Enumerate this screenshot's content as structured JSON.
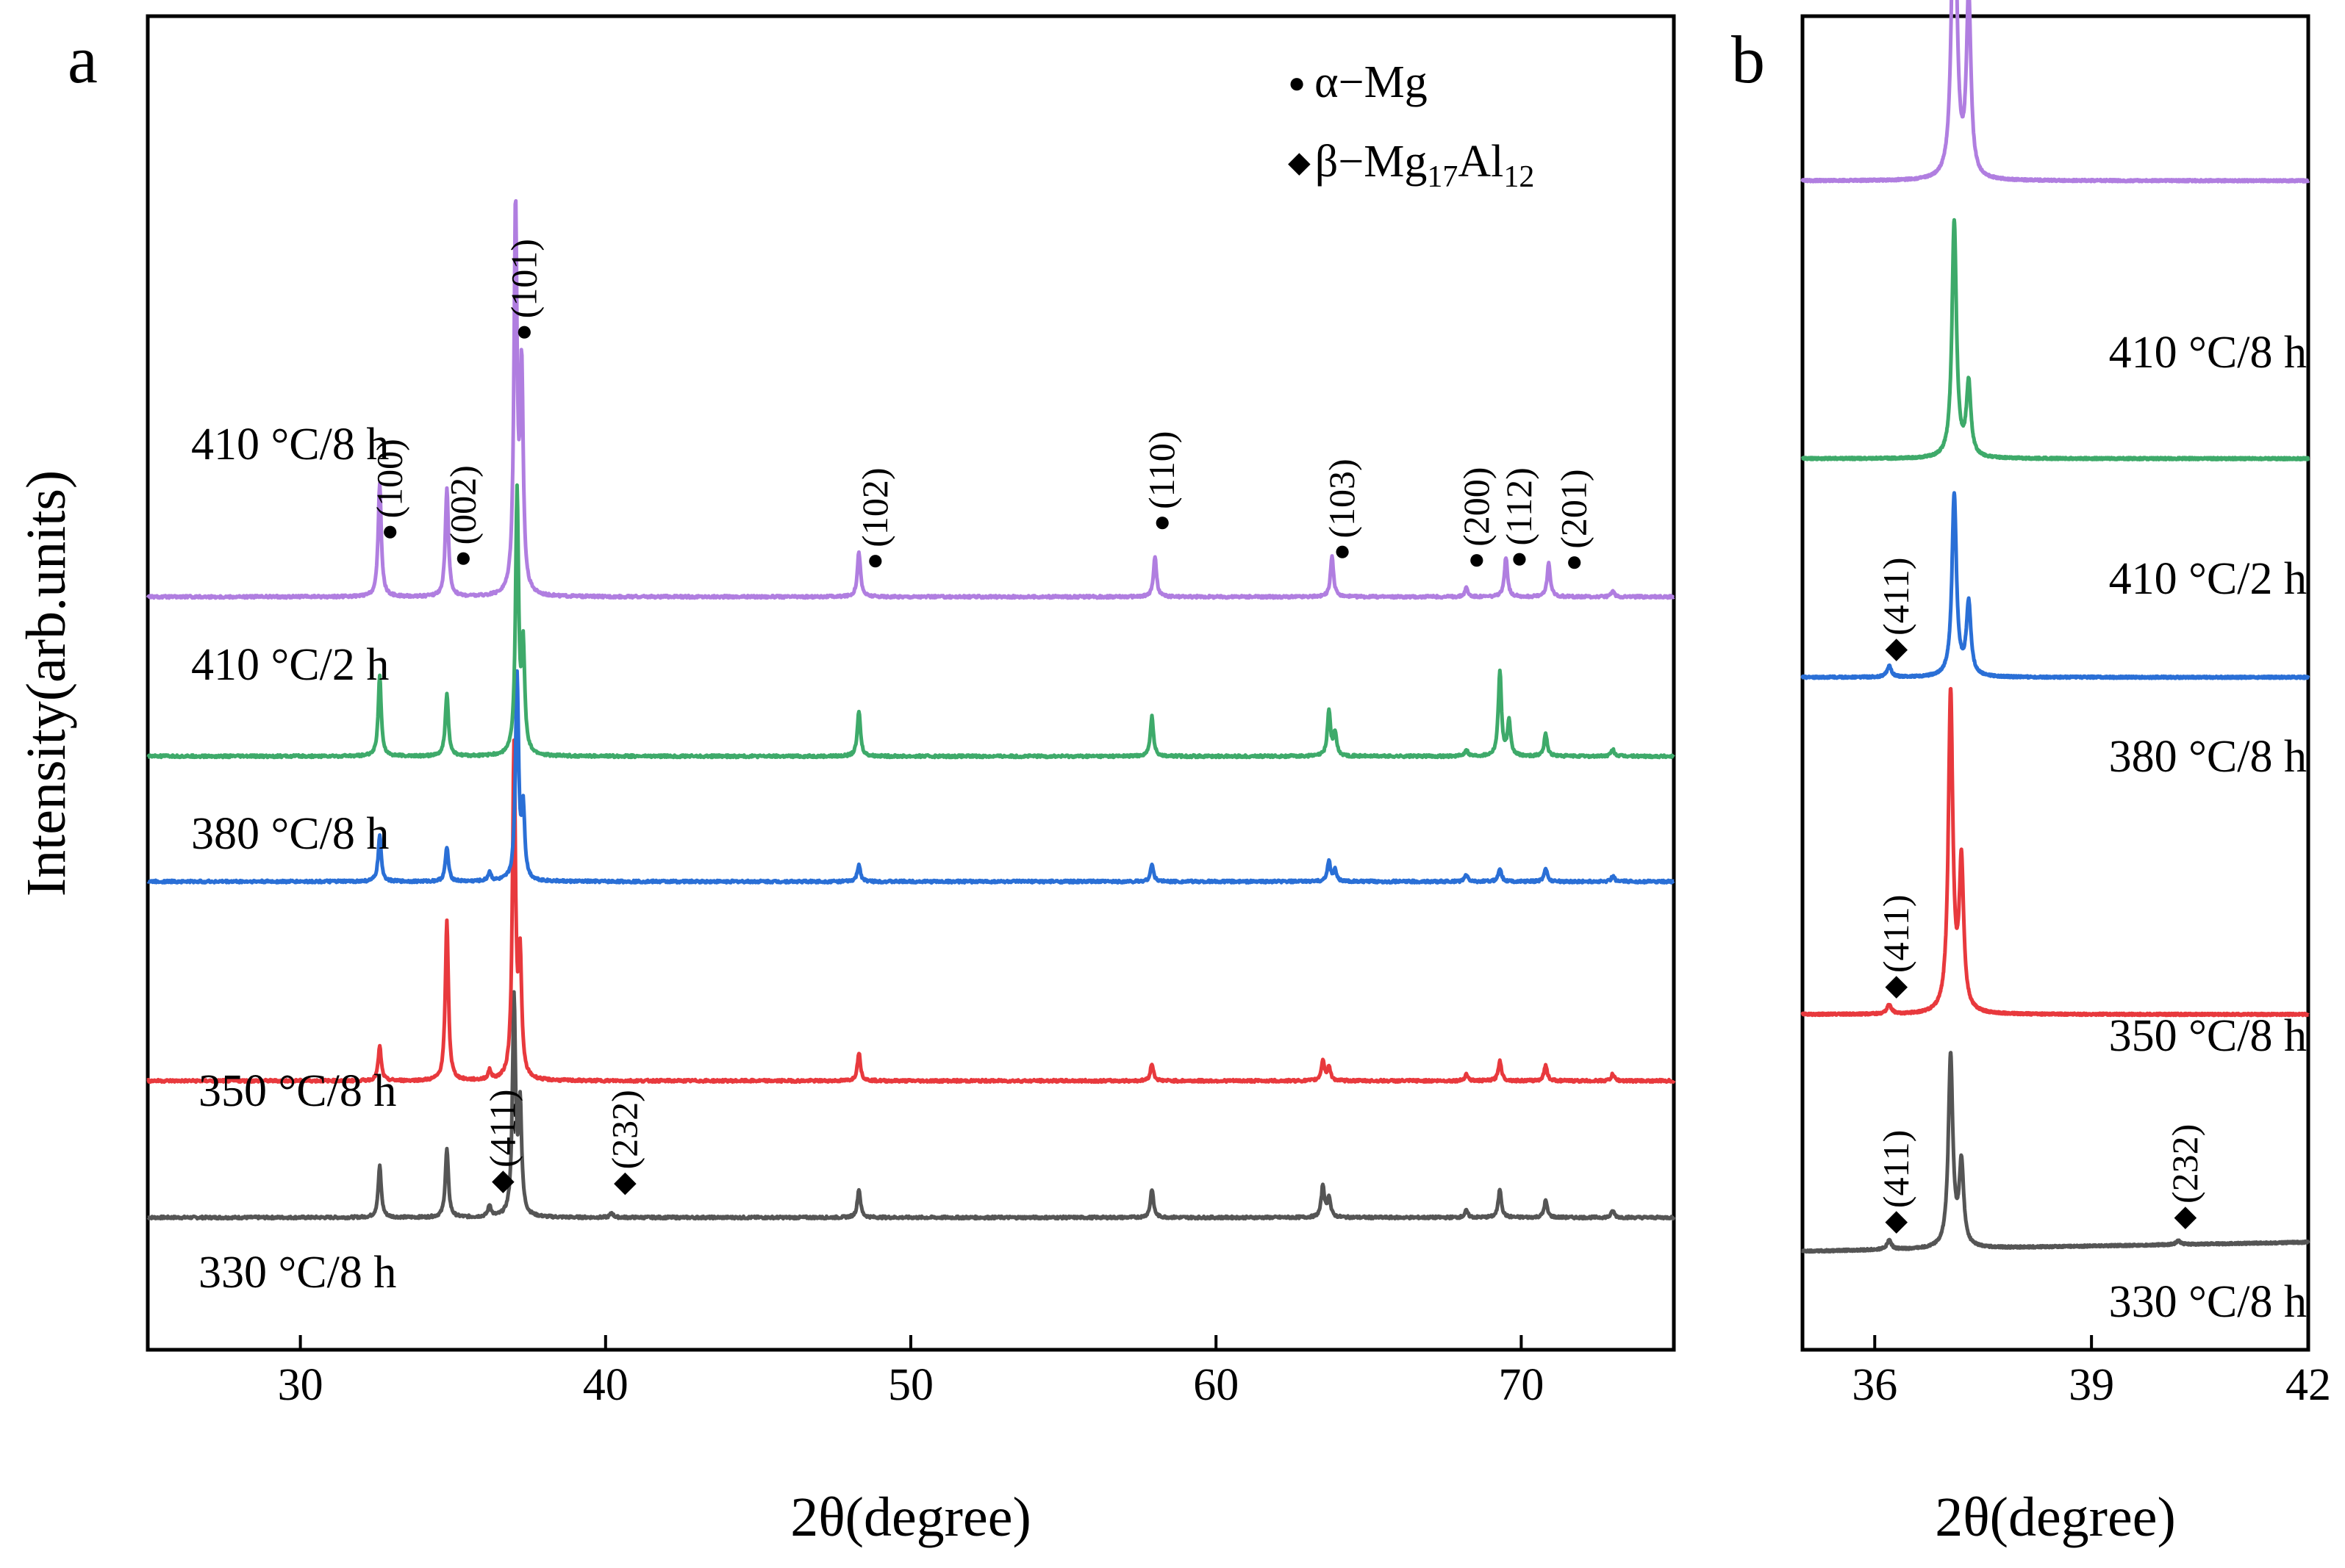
{
  "chart_data": [
    {
      "panel_label": "a",
      "type": "line",
      "xlabel": "2θ(degree)",
      "ylabel": "Intensity(arb.units)",
      "xlim": [
        25,
        75
      ],
      "xticks": [
        30,
        40,
        50,
        60,
        70
      ],
      "xtick_labels": [
        "30",
        "40",
        "50",
        "60",
        "70"
      ],
      "legend": [
        {
          "symbol": "●",
          "prefix": "α",
          "text": "−Mg",
          "sub1": "",
          "mid": "",
          "sub2": ""
        },
        {
          "symbol": "◆",
          "prefix": "β",
          "text": "−Mg",
          "sub1": "17",
          "mid": "Al",
          "sub2": "12"
        }
      ],
      "series": [
        {
          "name": "330 °C/8 h",
          "color": "#555555",
          "offset": 0,
          "peaks": [
            [
              32.6,
              45
            ],
            [
              34.8,
              60
            ],
            [
              36.2,
              10
            ],
            [
              37.0,
              190
            ],
            [
              37.2,
              95
            ],
            [
              40.2,
              4
            ],
            [
              48.3,
              25
            ],
            [
              57.9,
              25
            ],
            [
              63.5,
              28
            ],
            [
              63.7,
              18
            ],
            [
              68.2,
              6
            ],
            [
              69.3,
              25
            ],
            [
              70.8,
              15
            ],
            [
              73.0,
              6
            ]
          ]
        },
        {
          "name": "350 °C/8 h",
          "color": "#e8393d",
          "offset": 120,
          "peaks": [
            [
              32.6,
              30
            ],
            [
              34.8,
              140
            ],
            [
              36.2,
              8
            ],
            [
              37.0,
              290
            ],
            [
              37.2,
              100
            ],
            [
              48.3,
              25
            ],
            [
              57.9,
              15
            ],
            [
              63.5,
              18
            ],
            [
              63.7,
              12
            ],
            [
              68.2,
              6
            ],
            [
              69.3,
              18
            ],
            [
              70.8,
              14
            ],
            [
              73.0,
              6
            ]
          ]
        },
        {
          "name": "380 °C/8 h",
          "color": "#2a6fd6",
          "offset": 295,
          "peaks": [
            [
              32.6,
              40
            ],
            [
              34.8,
              30
            ],
            [
              36.2,
              8
            ],
            [
              37.1,
              180
            ],
            [
              37.3,
              60
            ],
            [
              48.3,
              15
            ],
            [
              57.9,
              15
            ],
            [
              63.7,
              18
            ],
            [
              63.9,
              10
            ],
            [
              68.2,
              6
            ],
            [
              69.3,
              12
            ],
            [
              70.8,
              12
            ],
            [
              73.0,
              5
            ]
          ]
        },
        {
          "name": "410 °C/2 h",
          "color": "#3eaa6a",
          "offset": 405,
          "peaks": [
            [
              32.6,
              70
            ],
            [
              34.8,
              55
            ],
            [
              37.1,
              230
            ],
            [
              37.3,
              90
            ],
            [
              48.3,
              40
            ],
            [
              57.9,
              35
            ],
            [
              63.7,
              40
            ],
            [
              63.9,
              20
            ],
            [
              68.2,
              6
            ],
            [
              69.3,
              75
            ],
            [
              69.6,
              30
            ],
            [
              70.8,
              20
            ],
            [
              73.0,
              6
            ]
          ]
        },
        {
          "name": "410 °C/8 h",
          "color": "#b07ee0",
          "offset": 545,
          "peaks": [
            [
              32.6,
              100
            ],
            [
              34.8,
              95
            ],
            [
              37.05,
              340
            ],
            [
              37.25,
              190
            ],
            [
              48.3,
              40
            ],
            [
              58.0,
              35
            ],
            [
              63.8,
              35
            ],
            [
              68.2,
              8
            ],
            [
              69.5,
              35
            ],
            [
              70.9,
              30
            ],
            [
              73.0,
              5
            ]
          ]
        }
      ],
      "annotations": [
        {
          "text": "(100)",
          "symbol": "●",
          "x": 32.7,
          "series": "410 °C/8 h"
        },
        {
          "text": "(002)",
          "symbol": "●",
          "x": 35.1,
          "series": "410 °C/8 h"
        },
        {
          "text": "(101)",
          "symbol": "●",
          "x": 37.1,
          "series": "410 °C/8 h"
        },
        {
          "text": "(102)",
          "symbol": "●",
          "x": 48.6,
          "series": "410 °C/8 h"
        },
        {
          "text": "(110)",
          "symbol": "●",
          "x": 58.0,
          "series": "410 °C/8 h"
        },
        {
          "text": "(103)",
          "symbol": "●",
          "x": 63.9,
          "series": "410 °C/8 h"
        },
        {
          "text": "(200)",
          "symbol": "●",
          "x": 68.3,
          "series": "410 °C/8 h"
        },
        {
          "text": "(112)",
          "symbol": "●",
          "x": 69.7,
          "series": "410 °C/8 h"
        },
        {
          "text": "(201)",
          "symbol": "●",
          "x": 71.5,
          "series": "410 °C/8 h"
        },
        {
          "text": "(411)",
          "symbol": "◆",
          "x": 36.4,
          "series": "330 °C/8 h"
        },
        {
          "text": "(232)",
          "symbol": "◆",
          "x": 40.4,
          "series": "330 °C/8 h"
        }
      ]
    },
    {
      "panel_label": "b",
      "type": "line",
      "xlabel": "2θ(degree)",
      "xlim": [
        35,
        42
      ],
      "xticks": [
        36,
        39,
        42
      ],
      "xtick_labels": [
        "36",
        "39",
        "42"
      ],
      "series": [
        {
          "name": "330 °C/8 h",
          "color": "#555555",
          "offset": 0,
          "baseline_slope": 10,
          "peaks": [
            [
              36.2,
              10
            ],
            [
              37.05,
              210
            ],
            [
              37.2,
              90
            ],
            [
              40.2,
              4
            ]
          ]
        },
        {
          "name": "350 °C/8 h",
          "color": "#e8393d",
          "offset": 260,
          "baseline_slope": 0,
          "peaks": [
            [
              36.2,
              10
            ],
            [
              37.05,
              350
            ],
            [
              37.2,
              160
            ]
          ]
        },
        {
          "name": "380 °C/8 h",
          "color": "#2a6fd6",
          "offset": 630,
          "baseline_slope": 0,
          "peaks": [
            [
              36.2,
              12
            ],
            [
              37.1,
              200
            ],
            [
              37.3,
              80
            ]
          ]
        },
        {
          "name": "410 °C/2 h",
          "color": "#3eaa6a",
          "offset": 870,
          "baseline_slope": 0,
          "peaks": [
            [
              37.1,
              260
            ],
            [
              37.3,
              80
            ]
          ]
        },
        {
          "name": "410 °C/8 h",
          "color": "#b07ee0",
          "offset": 1175,
          "baseline_slope": 0,
          "peaks": [
            [
              37.1,
              410
            ],
            [
              37.3,
              200
            ]
          ]
        }
      ],
      "annotations": [
        {
          "text": "(411)",
          "symbol": "◆",
          "x": 36.3,
          "series": "330 °C/8 h"
        },
        {
          "text": "(232)",
          "symbol": "◆",
          "x": 40.3,
          "series": "330 °C/8 h"
        },
        {
          "text": "(411)",
          "symbol": "◆",
          "x": 36.3,
          "series": "350 °C/8 h"
        },
        {
          "text": "(411)",
          "symbol": "◆",
          "x": 36.3,
          "series": "380 °C/8 h"
        }
      ]
    }
  ]
}
